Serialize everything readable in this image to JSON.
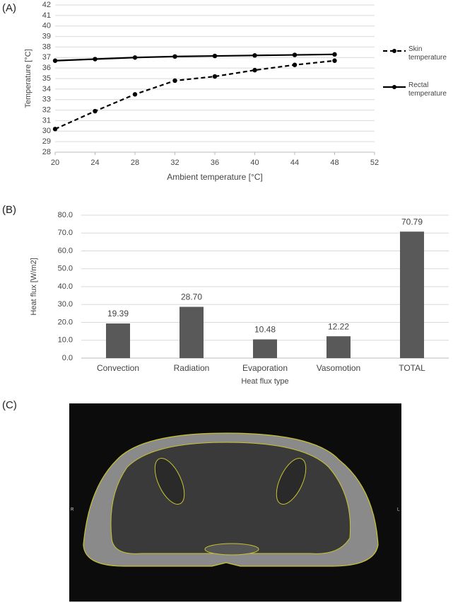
{
  "panels": [
    "(A)",
    "(B)",
    "(C)"
  ],
  "image": {
    "markers": [
      "R",
      "L"
    ]
  },
  "chart_data": [
    {
      "type": "line",
      "ylabel": "Temperature [°C]",
      "xlabel": "Ambient temperature [°C]",
      "x": [
        20,
        24,
        28,
        32,
        36,
        40,
        44,
        48
      ],
      "series": [
        {
          "name": "Skin temperature",
          "color": "#000000",
          "dash": true,
          "values": [
            30.2,
            31.9,
            33.5,
            34.8,
            35.2,
            35.8,
            36.3,
            36.7
          ]
        },
        {
          "name": "Rectal temperature",
          "color": "#000000",
          "dash": false,
          "values": [
            36.7,
            36.85,
            37.0,
            37.1,
            37.15,
            37.2,
            37.25,
            37.3
          ]
        }
      ],
      "xlim": [
        20,
        52
      ],
      "xticks": [
        20,
        24,
        28,
        32,
        36,
        40,
        44,
        48,
        52
      ],
      "ylim": [
        28,
        42
      ],
      "yticks": [
        28,
        29,
        30,
        31,
        32,
        33,
        34,
        35,
        36,
        37,
        38,
        39,
        40,
        41,
        42
      ],
      "grid": true,
      "legend": "right"
    },
    {
      "type": "bar",
      "ylabel": "Heat flux [W/m2]",
      "xlabel": "Heat flux type",
      "categories": [
        "Convection",
        "Radiation",
        "Evaporation",
        "Vasomotion",
        "TOTAL"
      ],
      "values": [
        19.39,
        28.7,
        10.48,
        12.22,
        70.79
      ],
      "value_labels": [
        "19.39",
        "28.70",
        "10.48",
        "12.22",
        "70.79"
      ],
      "color": "#595959",
      "ylim": [
        0,
        80
      ],
      "yticks": [
        {
          "value": 0,
          "label": "0.0"
        },
        {
          "value": 10,
          "label": "10.0"
        },
        {
          "value": 20,
          "label": "20.0"
        },
        {
          "value": 30,
          "label": "30.0"
        },
        {
          "value": 40,
          "label": "40.0"
        },
        {
          "value": 50,
          "label": "50.0"
        },
        {
          "value": 60,
          "label": "60.0"
        },
        {
          "value": 70,
          "label": "70.0"
        },
        {
          "value": 80,
          "label": "80.0"
        }
      ],
      "grid": true
    }
  ]
}
